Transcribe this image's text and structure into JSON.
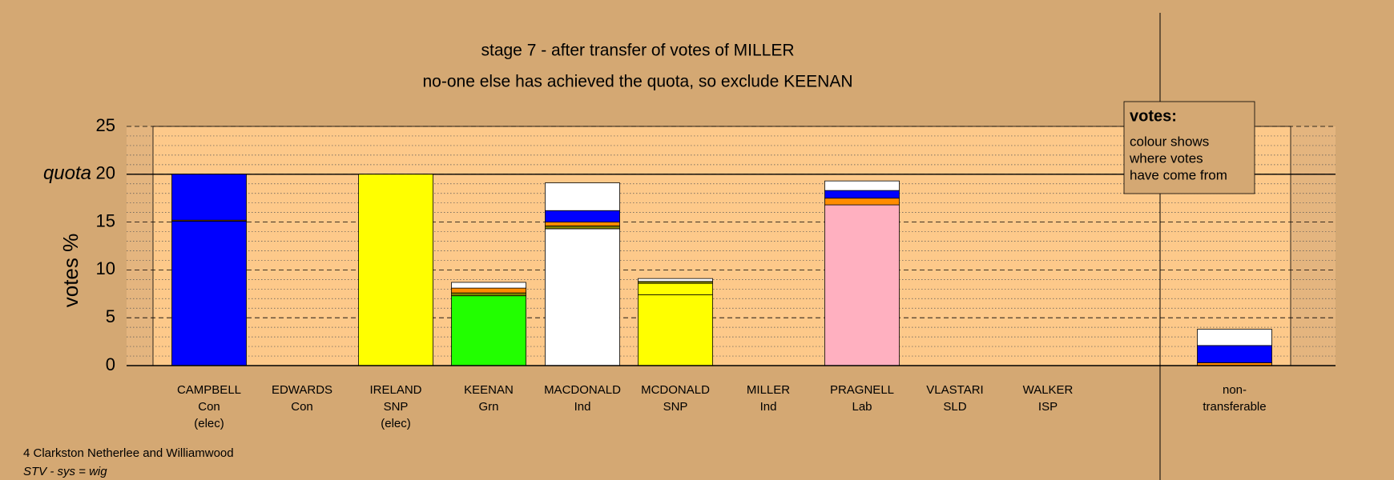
{
  "chart_data": {
    "type": "stacked_bar",
    "title": "stage 7 - after transfer of votes of MILLER",
    "subtitle": "no-one else has achieved the quota, so exclude KEENAN",
    "y_label": "votes %",
    "quota_label": "quota",
    "quota": 20,
    "ylim": [
      0,
      25
    ],
    "yticks": [
      0,
      5,
      10,
      15,
      20,
      25
    ],
    "minor_yticks": [
      1,
      2,
      3,
      4,
      6,
      7,
      8,
      9,
      11,
      12,
      13,
      14,
      16,
      17,
      18,
      19,
      21,
      22,
      23,
      24
    ],
    "grid": true,
    "categories": [
      [
        "CAMPBELL",
        "Con",
        "(elec)"
      ],
      [
        "EDWARDS",
        "Con"
      ],
      [
        "IRELAND",
        "SNP",
        "(elec)"
      ],
      [
        "KEENAN",
        "Grn"
      ],
      [
        "MACDONALD",
        "Ind"
      ],
      [
        "MCDONALD",
        "SNP"
      ],
      [
        "MILLER",
        "Ind"
      ],
      [
        "PRAGNELL",
        "Lab"
      ],
      [
        "VLASTARI",
        "SLD"
      ],
      [
        "WALKER",
        "ISP"
      ],
      [
        "non-",
        "transferable"
      ]
    ],
    "stacks": [
      [
        {
          "value": 15.1,
          "color": "#0000ff"
        },
        {
          "value": 0.1,
          "color": "#ff8c00"
        },
        {
          "value": 4.8,
          "color": "#0000ff"
        }
      ],
      [],
      [
        {
          "value": 20,
          "color": "#ffff00"
        }
      ],
      [
        {
          "value": 7.3,
          "color": "#22ff00"
        },
        {
          "value": 0.3,
          "color": "#808000"
        },
        {
          "value": 0.5,
          "color": "#ff8c00"
        },
        {
          "value": 0.6,
          "color": "#ffffff"
        }
      ],
      [
        {
          "value": 14.3,
          "color": "#ffffff"
        },
        {
          "value": 0.3,
          "color": "#808000"
        },
        {
          "value": 0.4,
          "color": "#ff8c00"
        },
        {
          "value": 1.2,
          "color": "#0000ff"
        },
        {
          "value": 2.9,
          "color": "#ffffff"
        }
      ],
      [
        {
          "value": 7.4,
          "color": "#ffff00"
        },
        {
          "value": 1.2,
          "color": "#ffff00"
        },
        {
          "value": 0.2,
          "color": "#808000"
        },
        {
          "value": 0.3,
          "color": "#ffffff"
        }
      ],
      [],
      [
        {
          "value": 16.8,
          "color": "#ffb0c0"
        },
        {
          "value": 0.7,
          "color": "#ff8c00"
        },
        {
          "value": 0.8,
          "color": "#0000ff"
        },
        {
          "value": 1.0,
          "color": "#ffffff"
        }
      ],
      [],
      [],
      [
        {
          "value": 0.3,
          "color": "#ff8c00"
        },
        {
          "value": 1.8,
          "color": "#0000ff"
        },
        {
          "value": 1.7,
          "color": "#ffffff"
        }
      ]
    ],
    "legend_title": "votes:",
    "legend_lines": [
      "colour shows",
      "where votes",
      "have come from"
    ],
    "footer": [
      "4 Clarkston Netherlee and Williamwood",
      "STV - sys = wig"
    ]
  }
}
